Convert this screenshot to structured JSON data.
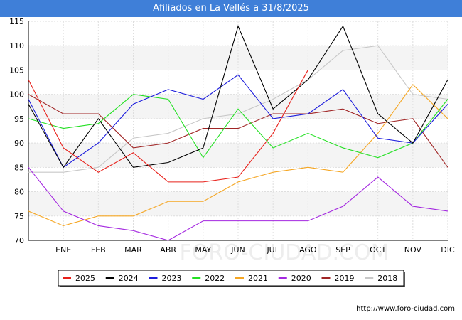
{
  "title": "Afiliados en La Vellés a 31/8/2025",
  "source": "http://www.foro-ciudad.com",
  "watermark": "FORO-CIUDAD.COM",
  "chart_data": {
    "type": "line",
    "categories": [
      "",
      "ENE",
      "FEB",
      "MAR",
      "ABR",
      "MAY",
      "JUN",
      "JUL",
      "AGO",
      "SEP",
      "OCT",
      "NOV",
      "DIC"
    ],
    "ylim": [
      70,
      115
    ],
    "yticks": [
      70,
      75,
      80,
      85,
      90,
      95,
      100,
      105,
      110,
      115
    ],
    "grid": true,
    "legend_position": "bottom",
    "series": [
      {
        "name": "2025",
        "color": "#e8201a",
        "values": [
          103,
          89,
          84,
          88,
          82,
          82,
          83,
          92,
          105,
          null,
          null,
          null,
          null
        ]
      },
      {
        "name": "2024",
        "color": "#000000",
        "values": [
          98,
          85,
          95,
          85,
          86,
          89,
          114,
          97,
          103,
          114,
          96,
          90,
          103
        ]
      },
      {
        "name": "2023",
        "color": "#1c1cdc",
        "values": [
          99,
          85,
          90,
          98,
          101,
          99,
          104,
          95,
          96,
          101,
          91,
          90,
          98
        ]
      },
      {
        "name": "2022",
        "color": "#22e022",
        "values": [
          95,
          93,
          94,
          100,
          99,
          87,
          97,
          89,
          92,
          89,
          87,
          90,
          99
        ]
      },
      {
        "name": "2021",
        "color": "#f5a623",
        "values": [
          76,
          73,
          75,
          75,
          78,
          78,
          82,
          84,
          85,
          84,
          92,
          102,
          95
        ]
      },
      {
        "name": "2020",
        "color": "#a428e0",
        "values": [
          85,
          76,
          73,
          72,
          70,
          74,
          74,
          74,
          74,
          77,
          83,
          77,
          76
        ]
      },
      {
        "name": "2019",
        "color": "#a02525",
        "values": [
          100,
          96,
          96,
          89,
          90,
          93,
          93,
          96,
          96,
          97,
          94,
          95,
          85
        ]
      },
      {
        "name": "2018",
        "color": "#c8c8c8",
        "values": [
          84,
          84,
          85,
          91,
          92,
          95,
          96,
          99,
          103,
          109,
          110,
          100,
          99
        ]
      }
    ]
  }
}
